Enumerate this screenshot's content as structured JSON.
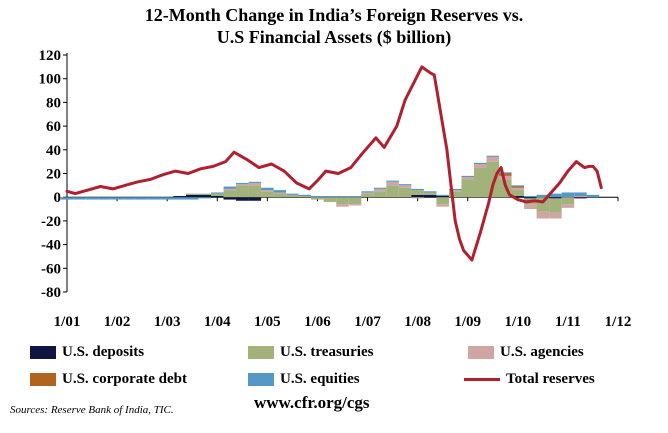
{
  "title_lines": [
    "12-Month Change in India’s Foreign Reserves vs.",
    "U.S Financial Assets ($ billion)"
  ],
  "source": "Sources: Reserve Bank of India, TIC.",
  "website": "www.cfr.org/cgs",
  "colors": {
    "us_deposits": "#0d1540",
    "us_treasuries": "#a3b17a",
    "us_agencies": "#d0a6a3",
    "us_corporate_debt": "#b2641f",
    "us_equities": "#5598c8",
    "total_reserves": "#b0202e"
  },
  "chart_data": {
    "type": "bar",
    "title": "12-Month Change in India’s Foreign Reserves vs. U.S Financial Assets ($ billion)",
    "xlabel": "",
    "ylabel": "",
    "ylim": [
      -80,
      120
    ],
    "yticks": [
      120,
      100,
      80,
      60,
      40,
      20,
      0,
      -20,
      -40,
      -60,
      -80
    ],
    "xticks": [
      "1/01",
      "1/02",
      "1/03",
      "1/04",
      "1/05",
      "1/06",
      "1/07",
      "1/08",
      "1/09",
      "1/10",
      "1/11",
      "1/12"
    ],
    "grid": false,
    "legend_position": "bottom",
    "frequency": "monthly",
    "x_start": "2001-01",
    "x": [
      "2001-01",
      "2001-04",
      "2001-07",
      "2001-10",
      "2002-01",
      "2002-04",
      "2002-07",
      "2002-10",
      "2003-01",
      "2003-04",
      "2003-07",
      "2003-10",
      "2004-01",
      "2004-04",
      "2004-07",
      "2004-10",
      "2005-01",
      "2005-04",
      "2005-07",
      "2005-10",
      "2006-01",
      "2006-04",
      "2006-07",
      "2006-10",
      "2007-01",
      "2007-04",
      "2007-07",
      "2007-10",
      "2008-01",
      "2008-04",
      "2008-07",
      "2008-10",
      "2009-01",
      "2009-04",
      "2009-07",
      "2009-10",
      "2010-01",
      "2010-04",
      "2010-07",
      "2010-10",
      "2011-01",
      "2011-04",
      "2011-07"
    ],
    "bar_series": [
      {
        "name": "U.S. deposits",
        "key": "us_deposits",
        "values": [
          0,
          0,
          0,
          0,
          0,
          0,
          0,
          0,
          0,
          1,
          2,
          2,
          1,
          -2,
          -3,
          -3,
          0,
          0,
          0,
          0,
          0,
          0,
          0,
          0,
          0,
          0,
          0,
          0,
          2,
          2,
          1,
          0,
          0,
          0,
          0,
          0,
          1,
          -1,
          0,
          -1,
          0,
          -1,
          0
        ]
      },
      {
        "name": "U.S. treasuries",
        "key": "us_treasuries",
        "values": [
          0,
          0,
          0,
          0,
          0,
          0,
          0,
          0,
          0,
          0,
          1,
          1,
          2,
          6,
          10,
          10,
          5,
          3,
          2,
          1,
          -2,
          -4,
          -6,
          -6,
          3,
          5,
          10,
          8,
          4,
          2,
          -6,
          5,
          15,
          25,
          30,
          15,
          5,
          -5,
          -12,
          -12,
          -6,
          0,
          0
        ]
      },
      {
        "name": "U.S. agencies",
        "key": "us_agencies",
        "values": [
          0,
          0,
          0,
          0,
          0,
          0,
          0,
          0,
          0,
          0,
          0,
          0,
          0,
          1,
          1,
          2,
          1,
          1,
          0,
          0,
          0,
          0,
          -2,
          -1,
          1,
          2,
          3,
          2,
          -1,
          0,
          -2,
          1,
          2,
          3,
          4,
          3,
          2,
          -4,
          -6,
          -5,
          -3,
          1,
          0
        ]
      },
      {
        "name": "U.S. corporate debt",
        "key": "us_corporate_debt",
        "values": [
          0,
          0,
          0,
          0,
          0,
          0,
          0,
          0,
          0,
          0,
          0,
          0,
          0,
          0,
          0,
          0,
          0,
          0,
          0,
          0,
          0,
          0,
          0,
          0,
          0,
          0,
          0,
          0,
          0,
          0,
          0,
          0,
          0,
          0,
          0,
          2,
          1,
          0,
          0,
          0,
          0,
          0,
          0
        ]
      },
      {
        "name": "U.S. equities",
        "key": "us_equities",
        "values": [
          -2,
          -2,
          -2,
          -2,
          -2,
          -2,
          -2,
          -2,
          -2,
          -2,
          -2,
          -1,
          1,
          2,
          1,
          1,
          2,
          2,
          1,
          1,
          1,
          1,
          1,
          1,
          1,
          1,
          1,
          1,
          1,
          1,
          1,
          1,
          1,
          1,
          1,
          1,
          1,
          1,
          2,
          3,
          4,
          3,
          2
        ]
      }
    ],
    "line_series": {
      "name": "Total reserves",
      "key": "total_reserves",
      "x": [
        "2001-01",
        "2001-03",
        "2001-06",
        "2001-09",
        "2001-12",
        "2002-03",
        "2002-06",
        "2002-09",
        "2002-12",
        "2003-03",
        "2003-06",
        "2003-09",
        "2003-12",
        "2004-03",
        "2004-05",
        "2004-08",
        "2004-11",
        "2005-02",
        "2005-05",
        "2005-08",
        "2005-11",
        "2006-01",
        "2006-03",
        "2006-06",
        "2006-09",
        "2006-12",
        "2007-03",
        "2007-05",
        "2007-08",
        "2007-10",
        "2007-12",
        "2008-02",
        "2008-04",
        "2008-05",
        "2008-06",
        "2008-08",
        "2008-09",
        "2008-10",
        "2008-11",
        "2008-12",
        "2009-02",
        "2009-04",
        "2009-06",
        "2009-07",
        "2009-08",
        "2009-09",
        "2009-10",
        "2009-11",
        "2010-01",
        "2010-03",
        "2010-05",
        "2010-07",
        "2010-09",
        "2010-11",
        "2011-01",
        "2011-03",
        "2011-05",
        "2011-06",
        "2011-07",
        "2011-08",
        "2011-09"
      ],
      "values": [
        5,
        3,
        6,
        9,
        7,
        10,
        13,
        15,
        19,
        22,
        20,
        24,
        26,
        30,
        38,
        32,
        25,
        28,
        22,
        12,
        7,
        14,
        22,
        20,
        25,
        38,
        50,
        42,
        60,
        82,
        96,
        110,
        105,
        103,
        82,
        40,
        10,
        -20,
        -35,
        -45,
        -53,
        -30,
        -5,
        10,
        20,
        25,
        10,
        2,
        -2,
        -4,
        -3,
        -4,
        4,
        12,
        22,
        30,
        25,
        26,
        26,
        22,
        8
      ]
    }
  },
  "legend": {
    "us_deposits": "U.S. deposits",
    "us_treasuries": "U.S. treasuries",
    "us_agencies": "U.S. agencies",
    "us_corporate_debt": "U.S. corporate debt",
    "us_equities": "U.S. equities",
    "total_reserves": "Total reserves"
  }
}
